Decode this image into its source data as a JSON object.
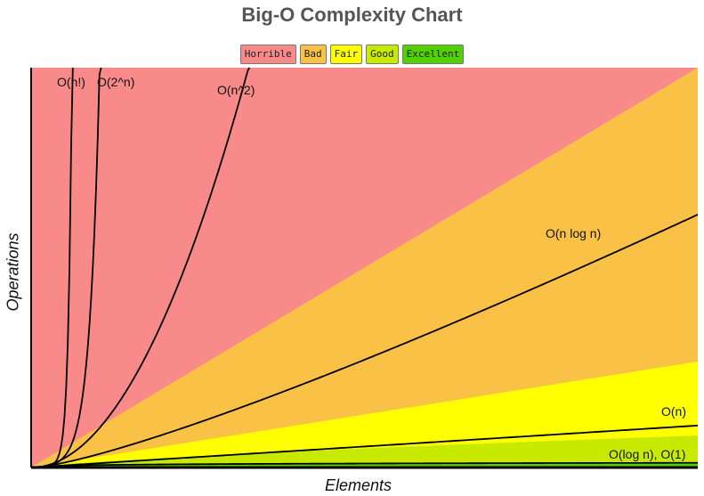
{
  "chart_data": {
    "type": "area",
    "title": "Big-O Complexity Chart",
    "xlabel": "Elements",
    "ylabel": "Operations",
    "xlim": [
      0,
      100
    ],
    "ylim": [
      0,
      1000
    ],
    "legend": [
      {
        "label": "Horrible",
        "color": "#f88a8a"
      },
      {
        "label": "Bad",
        "color": "#f9c247"
      },
      {
        "label": "Fair",
        "color": "#ffff00"
      },
      {
        "label": "Good",
        "color": "#c8ea00"
      },
      {
        "label": "Excellent",
        "color": "#53d000"
      }
    ],
    "regions": [
      {
        "name": "Horrible",
        "color": "#f88a8a",
        "upper_at_xmax": 1000
      },
      {
        "name": "Bad",
        "color": "#f9c247",
        "upper_at_xmax": 1000
      },
      {
        "name": "Fair",
        "color": "#ffff00",
        "upper_at_xmax": 265
      },
      {
        "name": "Good",
        "color": "#c8ea00",
        "upper_at_xmax": 80
      },
      {
        "name": "Excellent",
        "color": "#53d000",
        "upper_at_xmax": 10
      }
    ],
    "series": [
      {
        "name": "O(log n), O(1)",
        "function": "log"
      },
      {
        "name": "O(n)",
        "function": "linear"
      },
      {
        "name": "O(n log n)",
        "function": "nlogn"
      },
      {
        "name": "O(n^2)",
        "function": "quadratic"
      },
      {
        "name": "O(2^n)",
        "function": "exponential"
      },
      {
        "name": "O(n!)",
        "function": "factorial"
      }
    ]
  }
}
